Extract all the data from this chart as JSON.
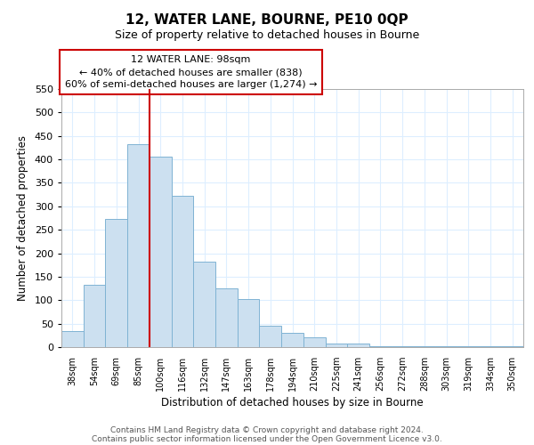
{
  "title": "12, WATER LANE, BOURNE, PE10 0QP",
  "subtitle": "Size of property relative to detached houses in Bourne",
  "xlabel": "Distribution of detached houses by size in Bourne",
  "ylabel": "Number of detached properties",
  "bar_color": "#cce0f0",
  "bar_edge_color": "#7fb3d3",
  "categories": [
    "38sqm",
    "54sqm",
    "69sqm",
    "85sqm",
    "100sqm",
    "116sqm",
    "132sqm",
    "147sqm",
    "163sqm",
    "178sqm",
    "194sqm",
    "210sqm",
    "225sqm",
    "241sqm",
    "256sqm",
    "272sqm",
    "288sqm",
    "303sqm",
    "319sqm",
    "334sqm",
    "350sqm"
  ],
  "values": [
    35,
    133,
    273,
    433,
    405,
    323,
    182,
    125,
    103,
    45,
    30,
    20,
    8,
    7,
    2,
    2,
    1,
    1,
    1,
    1,
    2
  ],
  "ylim": [
    0,
    550
  ],
  "yticks": [
    0,
    50,
    100,
    150,
    200,
    250,
    300,
    350,
    400,
    450,
    500,
    550
  ],
  "property_line_index": 4,
  "annotation_title": "12 WATER LANE: 98sqm",
  "annotation_line1": "← 40% of detached houses are smaller (838)",
  "annotation_line2": "60% of semi-detached houses are larger (1,274) →",
  "annotation_box_color": "#ffffff",
  "annotation_box_edge": "#cc0000",
  "property_line_color": "#cc0000",
  "background_color": "#ffffff",
  "grid_color": "#ddeeff",
  "footer1": "Contains HM Land Registry data © Crown copyright and database right 2024.",
  "footer2": "Contains public sector information licensed under the Open Government Licence v3.0."
}
